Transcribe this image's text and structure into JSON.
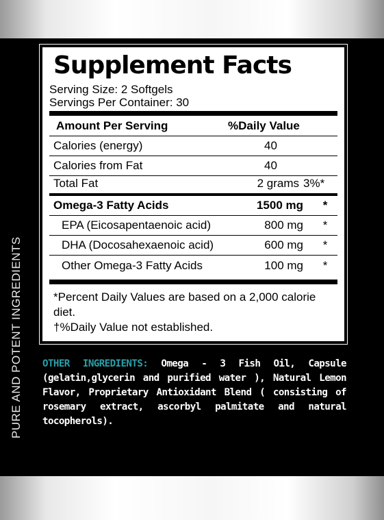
{
  "side_text": "PURE AND POTENT INGREDIENTS",
  "facts": {
    "title": "Supplement Facts",
    "serving_size": "Serving Size:  2 Softgels",
    "servings_per_container": "Servings Per Container:  30",
    "header_amount": "Amount Per Serving",
    "header_dv": "%Daily Value",
    "rows": [
      {
        "name": "Calories (energy)",
        "amount": "40",
        "dv": ""
      },
      {
        "name": "Calories from Fat",
        "amount": "40",
        "dv": ""
      },
      {
        "name": "Total Fat",
        "amount": "2 grams",
        "dv": "3%*"
      },
      {
        "name": "Omega-3 Fatty Acids",
        "amount": "1500 mg",
        "dv": "*"
      },
      {
        "name": "EPA (Eicosapentaenoic acid)",
        "amount": "800 mg",
        "dv": "*"
      },
      {
        "name": "DHA (Docosahexaenoic acid)",
        "amount": "600 mg",
        "dv": "*"
      },
      {
        "name": "Other Omega-3 Fatty Acids",
        "amount": "100 mg",
        "dv": "*"
      }
    ],
    "footnote_1": "*Percent Daily Values are based on a 2,000 calorie diet.",
    "footnote_2": "†%Daily Value not established."
  },
  "other_ingredients": {
    "heading": "OTHER INGREDIENTS:",
    "text": "Omega - 3 Fish Oil, Capsule (gelatin,glycerin and purified water ), Natural Lemon Flavor, Proprietary Antioxidant Blend ( consisting of rosemary extract, ascorbyl palmitate and natural tocopherols)."
  },
  "colors": {
    "heading_teal": "#2aa0a9",
    "label_background": "#000000"
  }
}
